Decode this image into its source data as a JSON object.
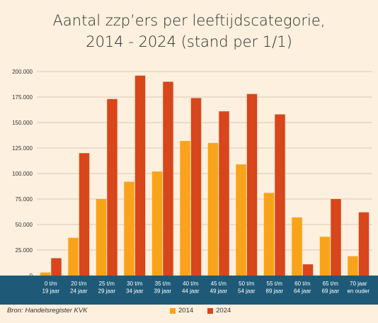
{
  "title_lines": [
    "Aantal zzp’ers per leeftijdscategorie,",
    "2014 - 2024 (stand per 1/1)"
  ],
  "source": "Bron: Handelsregister KVK",
  "colors": {
    "s2014": "#f9a31b",
    "s2024": "#d8461c",
    "band": "#1e5a77",
    "grid": "#d9c8b4",
    "background": "#fdf0de"
  },
  "chart_data": {
    "type": "bar",
    "title": "Aantal zzp’ers per leeftijdscategorie, 2014 - 2024 (stand per 1/1)",
    "categories": [
      [
        "0 t/m",
        "19 jaar"
      ],
      [
        "20 t/m",
        "24 jaar"
      ],
      [
        "25 t/m",
        "29 jaar"
      ],
      [
        "30 t/m",
        "34 jaar"
      ],
      [
        "35 t/m",
        "39 jaar"
      ],
      [
        "40 t/m",
        "44 jaar"
      ],
      [
        "45 t/m",
        "49 jaar"
      ],
      [
        "50 t/m",
        "54 jaar"
      ],
      [
        "55 t/m",
        "89 jaar"
      ],
      [
        "60 t/m",
        "64 jaar"
      ],
      [
        "65 t/m",
        "69 jaar"
      ],
      [
        "70 jaar",
        "en ouder"
      ]
    ],
    "series": [
      {
        "name": "2014",
        "color": "#f9a31b",
        "values": [
          3000,
          37000,
          75000,
          92000,
          102000,
          132000,
          130000,
          109000,
          81000,
          57000,
          38000,
          19000
        ]
      },
      {
        "name": "2024",
        "color": "#d8461c",
        "values": [
          17000,
          120000,
          173000,
          196000,
          190000,
          174000,
          161000,
          178000,
          158000,
          11000,
          75000,
          62000
        ]
      }
    ],
    "y_ticks": [
      "0",
      "25.000",
      "50.000",
      "75.000",
      "100.000",
      "125.000",
      "150.000",
      "175.000",
      "200.000"
    ],
    "ylim": [
      0,
      200000
    ],
    "grid": true,
    "legend": "bottom-center"
  }
}
